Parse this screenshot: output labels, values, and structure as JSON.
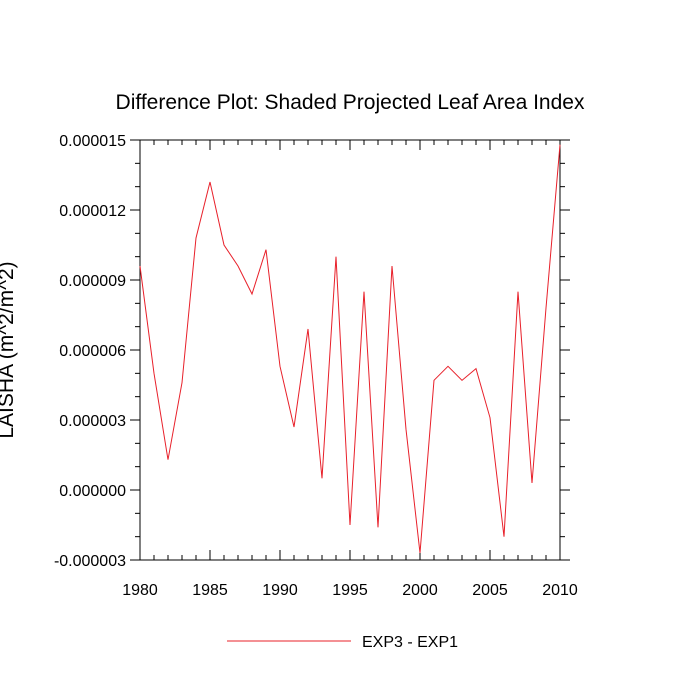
{
  "chart_data": {
    "type": "line",
    "title": "Difference Plot: Shaded Projected Leaf Area Index",
    "xlabel": "",
    "ylabel": "LAISHA  (m^2/m^2)",
    "xlim": [
      1980,
      2010
    ],
    "ylim": [
      -3e-06,
      1.5e-05
    ],
    "x_ticks": [
      1980,
      1985,
      1990,
      1995,
      2000,
      2005,
      2010
    ],
    "x_tick_labels": [
      "1980",
      "1985",
      "1990",
      "1995",
      "2000",
      "2005",
      "2010"
    ],
    "y_ticks": [
      -3e-06,
      0.0,
      3e-06,
      6e-06,
      9e-06,
      1.2e-05,
      1.5e-05
    ],
    "y_tick_labels": [
      "-0.000003",
      "0.000000",
      "0.000003",
      "0.000006",
      "0.000009",
      "0.000012",
      "0.000015"
    ],
    "grid": false,
    "legend_position": "bottom-center",
    "series": [
      {
        "name": "EXP3 - EXP1",
        "color": "#e8202a",
        "x": [
          1980,
          1981,
          1982,
          1983,
          1984,
          1985,
          1986,
          1987,
          1988,
          1989,
          1990,
          1991,
          1992,
          1993,
          1994,
          1995,
          1996,
          1997,
          1998,
          1999,
          2000,
          2001,
          2002,
          2003,
          2004,
          2005,
          2006,
          2007,
          2008,
          2009,
          2010
        ],
        "values": [
          9.6e-06,
          5e-06,
          1.3e-06,
          4.6e-06,
          1.08e-05,
          1.32e-05,
          1.05e-05,
          9.6e-06,
          8.4e-06,
          1.03e-05,
          5.3e-06,
          2.7e-06,
          6.9e-06,
          5e-07,
          1e-05,
          -1.5e-06,
          8.5e-06,
          -1.6e-06,
          9.6e-06,
          2.6e-06,
          -2.7e-06,
          4.7e-06,
          5.3e-06,
          4.7e-06,
          5.2e-06,
          3.1e-06,
          -2e-06,
          8.5e-06,
          3e-07,
          7.8e-06,
          1.48e-05
        ]
      }
    ]
  }
}
